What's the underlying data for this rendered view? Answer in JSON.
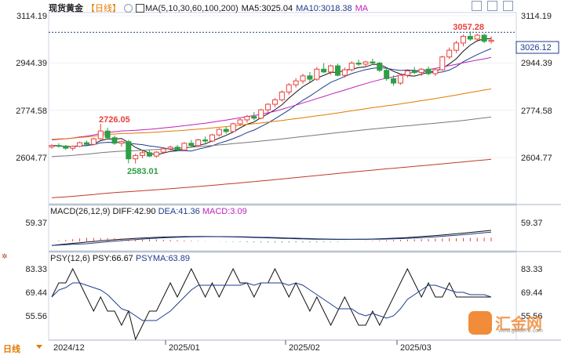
{
  "header": {
    "instrument": "现货黄金",
    "period": "【日线】",
    "ma_label": "MA(5,10,30,60,100,200)",
    "ma5": "MA5:3025.04",
    "ma10": "MA10:3018.38",
    "ma_more": "MA"
  },
  "price_panel": {
    "y_ticks": [
      "3114.19",
      "2944.39",
      "2774.58",
      "2604.77"
    ],
    "current_price": "3026.12",
    "annotations": {
      "high": "3057.28",
      "mid_high": "2726.05",
      "low": "2583.01"
    }
  },
  "macd_panel": {
    "label": "MACD(26,12,9)",
    "diff": "DIFF:42.90",
    "dea": "DEA:41.36",
    "macd": "MACD:3.09",
    "y_tick": "59.37"
  },
  "psy_panel": {
    "label": "PSY(12,6)",
    "psy": "PSY:66.67",
    "psyma": "PSYMA:63.89",
    "y_ticks": [
      "83.33",
      "69.44",
      "55.56"
    ]
  },
  "x_axis": {
    "period_button": "日线",
    "labels": [
      "2024/12",
      "2025/01",
      "2025/02",
      "2025/03"
    ]
  },
  "watermark": {
    "brand": "汇金网",
    "url": "www.gold678.com"
  },
  "colors": {
    "up": "#e8413b",
    "down": "#2f9e44",
    "ma5": "#111111",
    "ma10": "#1e3c8c",
    "ma30": "#c020c0",
    "ma60": "#e07b00",
    "ma100": "#777777",
    "ma200": "#c0392b",
    "psy": "#111111",
    "psyma": "#1e3c8c",
    "dea": "#1e3c8c",
    "diff": "#111111"
  },
  "chart_data": {
    "type": "candlestick",
    "title": "现货黄金【日线】",
    "ylim": [
      2540,
      3140
    ],
    "x_labels": [
      "2024/12",
      "2025/01",
      "2025/02",
      "2025/03"
    ],
    "candles": [
      [
        2643,
        2652,
        2636,
        2648
      ],
      [
        2648,
        2656,
        2640,
        2646
      ],
      [
        2646,
        2650,
        2632,
        2638
      ],
      [
        2638,
        2648,
        2630,
        2645
      ],
      [
        2645,
        2662,
        2642,
        2658
      ],
      [
        2658,
        2666,
        2648,
        2652
      ],
      [
        2652,
        2676,
        2648,
        2672
      ],
      [
        2672,
        2726,
        2668,
        2700
      ],
      [
        2700,
        2712,
        2670,
        2676
      ],
      [
        2676,
        2684,
        2650,
        2656
      ],
      [
        2656,
        2666,
        2644,
        2662
      ],
      [
        2662,
        2668,
        2584,
        2600
      ],
      [
        2600,
        2618,
        2583,
        2612
      ],
      [
        2612,
        2630,
        2602,
        2622
      ],
      [
        2622,
        2632,
        2606,
        2610
      ],
      [
        2610,
        2628,
        2604,
        2624
      ],
      [
        2624,
        2640,
        2618,
        2636
      ],
      [
        2636,
        2648,
        2630,
        2642
      ],
      [
        2642,
        2650,
        2628,
        2632
      ],
      [
        2632,
        2660,
        2628,
        2656
      ],
      [
        2656,
        2668,
        2640,
        2648
      ],
      [
        2648,
        2672,
        2644,
        2668
      ],
      [
        2668,
        2680,
        2656,
        2664
      ],
      [
        2664,
        2690,
        2660,
        2686
      ],
      [
        2686,
        2710,
        2680,
        2706
      ],
      [
        2706,
        2716,
        2690,
        2698
      ],
      [
        2698,
        2730,
        2694,
        2726
      ],
      [
        2726,
        2746,
        2718,
        2740
      ],
      [
        2740,
        2758,
        2730,
        2752
      ],
      [
        2752,
        2768,
        2738,
        2746
      ],
      [
        2746,
        2780,
        2742,
        2776
      ],
      [
        2776,
        2800,
        2768,
        2796
      ],
      [
        2796,
        2818,
        2786,
        2812
      ],
      [
        2812,
        2846,
        2806,
        2840
      ],
      [
        2840,
        2872,
        2830,
        2866
      ],
      [
        2866,
        2890,
        2856,
        2880
      ],
      [
        2880,
        2906,
        2870,
        2898
      ],
      [
        2898,
        2912,
        2876,
        2886
      ],
      [
        2886,
        2930,
        2880,
        2922
      ],
      [
        2922,
        2944,
        2908,
        2912
      ],
      [
        2912,
        2938,
        2902,
        2934
      ],
      [
        2934,
        2942,
        2896,
        2900
      ],
      [
        2900,
        2928,
        2892,
        2920
      ],
      [
        2920,
        2950,
        2914,
        2944
      ],
      [
        2944,
        2956,
        2934,
        2940
      ],
      [
        2940,
        2952,
        2930,
        2948
      ],
      [
        2948,
        2960,
        2938,
        2944
      ],
      [
        2944,
        2948,
        2912,
        2918
      ],
      [
        2918,
        2928,
        2880,
        2888
      ],
      [
        2888,
        2900,
        2862,
        2872
      ],
      [
        2872,
        2906,
        2866,
        2900
      ],
      [
        2900,
        2922,
        2892,
        2916
      ],
      [
        2916,
        2930,
        2904,
        2910
      ],
      [
        2910,
        2926,
        2898,
        2922
      ],
      [
        2922,
        2932,
        2900,
        2906
      ],
      [
        2906,
        2926,
        2898,
        2920
      ],
      [
        2920,
        2970,
        2916,
        2966
      ],
      [
        2966,
        3000,
        2958,
        2990
      ],
      [
        2990,
        3024,
        2980,
        3016
      ],
      [
        3016,
        3046,
        3004,
        3040
      ],
      [
        3040,
        3057,
        3024,
        3030
      ],
      [
        3030,
        3050,
        3020,
        3044
      ],
      [
        3044,
        3050,
        3016,
        3022
      ],
      [
        3022,
        3040,
        3014,
        3026
      ]
    ],
    "ma_series": [
      {
        "name": "MA5",
        "start": 2700,
        "end": 3025.04
      },
      {
        "name": "MA10",
        "start": 2690,
        "end": 3018.38
      },
      {
        "name": "MA30",
        "start": 2668,
        "end": 2958
      },
      {
        "name": "MA60",
        "start": 2670,
        "end": 2857
      },
      {
        "name": "MA100",
        "start": 2608,
        "end": 2790
      },
      {
        "name": "MA200",
        "start": 2460,
        "end": 2665
      }
    ],
    "macd": {
      "diff_last": 42.9,
      "dea_last": 41.36,
      "macd_last": 3.09
    },
    "psy": {
      "psy_last": 66.67,
      "psyma_last": 63.89,
      "ylim": [
        45,
        90
      ]
    }
  }
}
